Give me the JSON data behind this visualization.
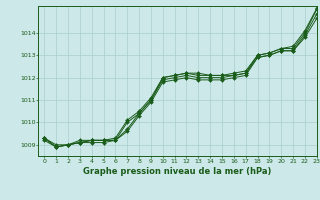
{
  "xlabel": "Graphe pression niveau de la mer (hPa)",
  "xlim": [
    -0.5,
    23
  ],
  "ylim": [
    1008.5,
    1015.2
  ],
  "yticks": [
    1009,
    1010,
    1011,
    1012,
    1013,
    1014
  ],
  "xticks": [
    0,
    1,
    2,
    3,
    4,
    5,
    6,
    7,
    8,
    9,
    10,
    11,
    12,
    13,
    14,
    15,
    16,
    17,
    18,
    19,
    20,
    21,
    22,
    23
  ],
  "bg_color": "#cce8e8",
  "grid_color": "#aacece",
  "line_color": "#1a5c1a",
  "series": [
    [
      1009.3,
      1008.9,
      1009.0,
      1009.1,
      1009.2,
      1009.2,
      1009.2,
      1010.0,
      1010.4,
      1011.0,
      1012.0,
      1012.1,
      1012.2,
      1012.2,
      1012.1,
      1012.1,
      1012.1,
      1012.2,
      1013.0,
      1013.1,
      1013.3,
      1013.3,
      1014.0,
      1015.05
    ],
    [
      1009.3,
      1008.9,
      1009.0,
      1009.1,
      1009.2,
      1009.2,
      1009.2,
      1009.7,
      1010.4,
      1011.0,
      1011.9,
      1012.0,
      1012.1,
      1012.0,
      1012.0,
      1012.0,
      1012.1,
      1012.2,
      1012.9,
      1013.0,
      1013.2,
      1013.2,
      1013.9,
      1014.85
    ],
    [
      1009.3,
      1009.0,
      1009.0,
      1009.2,
      1009.2,
      1009.2,
      1009.3,
      1010.1,
      1010.5,
      1011.1,
      1012.0,
      1012.1,
      1012.2,
      1012.1,
      1012.1,
      1012.1,
      1012.2,
      1012.3,
      1013.0,
      1013.1,
      1013.3,
      1013.4,
      1014.1,
      1015.1
    ],
    [
      1009.2,
      1008.9,
      1009.0,
      1009.1,
      1009.1,
      1009.1,
      1009.2,
      1009.6,
      1010.3,
      1010.9,
      1011.8,
      1011.9,
      1012.0,
      1011.9,
      1011.9,
      1011.9,
      1012.0,
      1012.1,
      1012.9,
      1013.0,
      1013.2,
      1013.2,
      1013.8,
      1014.65
    ]
  ]
}
